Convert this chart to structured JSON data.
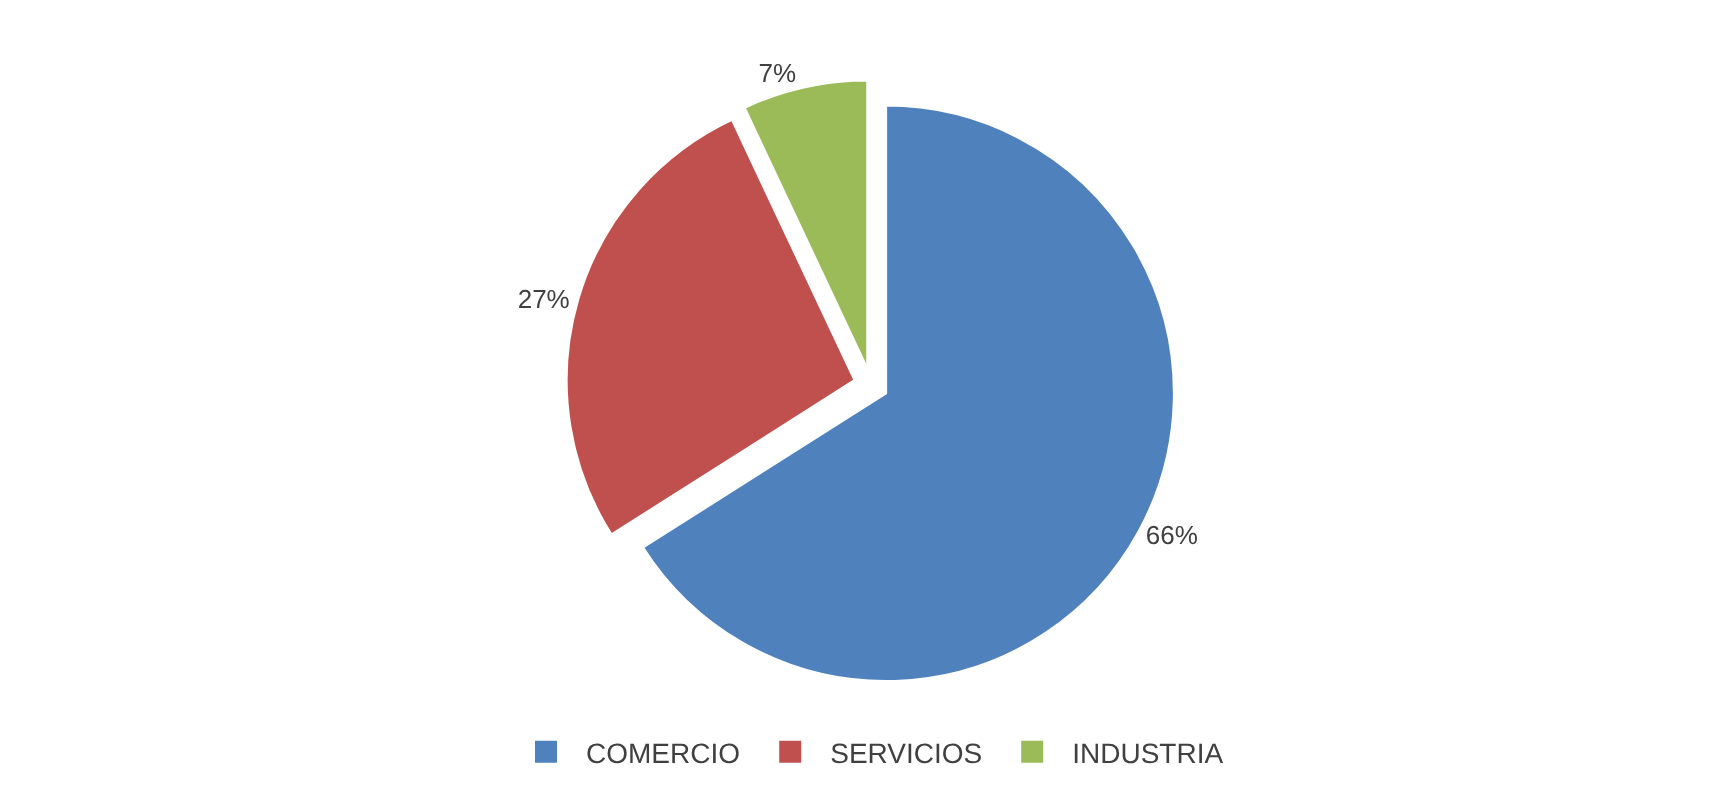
{
  "chart_data": {
    "type": "pie",
    "categories": [
      "COMERCIO",
      "SERVICIOS",
      "INDUSTRIA"
    ],
    "values": [
      66,
      27,
      7
    ],
    "colors": [
      "#4f81bd",
      "#c0504d",
      "#9bbb59"
    ],
    "value_labels": [
      "66%",
      "27%",
      "7%"
    ],
    "legend": "bottom"
  }
}
